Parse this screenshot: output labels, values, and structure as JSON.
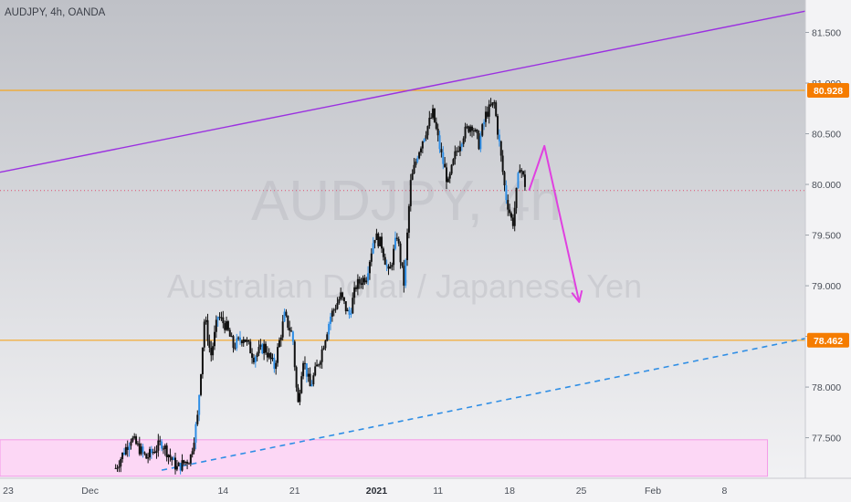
{
  "header": {
    "symbol_label": "AUDJPY, 4h, OANDA"
  },
  "watermark": {
    "ticker": "AUDJPY, 4h",
    "description": "Australian Dollar / Japanese Yen"
  },
  "colors": {
    "background_top": "#bfc1c7",
    "background_bottom": "#f4f4f6",
    "candle": "#111111",
    "candle_highlight": "#2f8ee5",
    "resistance": "#f5a623",
    "price_label_bg": "#f57c00",
    "trendline_upper": "#9b30e0",
    "trendline_lower": "#2f8ee5",
    "arrow": "#e040e0",
    "zone_fill": "#fcd7f5",
    "zone_border": "#f49ae8",
    "dotted_price": "#e0506e"
  },
  "chart_data": {
    "type": "candlestick",
    "title": "AUDJPY, 4h, OANDA",
    "ylim": [
      77.1,
      81.82
    ],
    "yticks": [
      77.5,
      78.0,
      78.5,
      79.0,
      79.5,
      80.0,
      80.5,
      81.0,
      81.5
    ],
    "ytick_labels": [
      "77.500",
      "78.000",
      "78.500",
      "79.000",
      "79.500",
      "80.000",
      "80.500",
      "81.000",
      "81.500"
    ],
    "xticks": [
      {
        "label": "23",
        "day": -1
      },
      {
        "label": "Dec",
        "day": 7
      },
      {
        "label": "14",
        "day": 20
      },
      {
        "label": "21",
        "day": 27
      },
      {
        "label": "2021",
        "day": 35
      },
      {
        "label": "11",
        "day": 41
      },
      {
        "label": "18",
        "day": 48
      },
      {
        "label": "25",
        "day": 55
      },
      {
        "label": "Feb",
        "day": 62
      },
      {
        "label": "8",
        "day": 69
      }
    ],
    "xdomain": [
      -1.8,
      76.9
    ],
    "price_path": [
      [
        9.5,
        77.2
      ],
      [
        11.0,
        77.5
      ],
      [
        12.5,
        77.3
      ],
      [
        14.0,
        77.45
      ],
      [
        15.5,
        77.2
      ],
      [
        16.8,
        77.3
      ],
      [
        17.5,
        77.7
      ],
      [
        18.2,
        78.7
      ],
      [
        18.8,
        78.3
      ],
      [
        19.5,
        78.7
      ],
      [
        20.3,
        78.6
      ],
      [
        21.0,
        78.4
      ],
      [
        22.0,
        78.5
      ],
      [
        23.0,
        78.3
      ],
      [
        24.0,
        78.4
      ],
      [
        25.0,
        78.2
      ],
      [
        26.0,
        78.7
      ],
      [
        26.8,
        78.5
      ],
      [
        27.3,
        77.8
      ],
      [
        27.8,
        78.3
      ],
      [
        28.5,
        78.0
      ],
      [
        29.5,
        78.3
      ],
      [
        30.5,
        78.7
      ],
      [
        31.5,
        78.9
      ],
      [
        32.3,
        78.7
      ],
      [
        33.0,
        79.0
      ],
      [
        34.0,
        79.1
      ],
      [
        34.8,
        79.5
      ],
      [
        35.5,
        79.4
      ],
      [
        36.2,
        79.1
      ],
      [
        37.0,
        79.5
      ],
      [
        37.7,
        79.0
      ],
      [
        38.3,
        80.0
      ],
      [
        39.0,
        80.3
      ],
      [
        39.7,
        80.5
      ],
      [
        40.5,
        80.7
      ],
      [
        41.3,
        80.3
      ],
      [
        42.0,
        80.0
      ],
      [
        42.7,
        80.3
      ],
      [
        43.5,
        80.5
      ],
      [
        44.3,
        80.6
      ],
      [
        45.0,
        80.4
      ],
      [
        45.7,
        80.7
      ],
      [
        46.5,
        80.8
      ],
      [
        47.0,
        80.4
      ],
      [
        47.6,
        79.9
      ],
      [
        48.3,
        79.6
      ],
      [
        49.0,
        80.2
      ],
      [
        49.5,
        80.0
      ]
    ],
    "last_price": 79.94,
    "horizontal_levels": [
      {
        "label": "80.928",
        "price": 80.928
      },
      {
        "label": "78.462",
        "price": 78.462
      }
    ],
    "upper_trendline": {
      "start": {
        "day": -1.8,
        "price": 80.12
      },
      "end": {
        "day": 76.9,
        "price": 81.71
      }
    },
    "lower_trendline": {
      "start": {
        "day": 14.0,
        "price": 77.18
      },
      "end": {
        "day": 76.9,
        "price": 78.48
      }
    },
    "support_zone": {
      "day_start": -1.8,
      "day_end": 73.2,
      "price_low": 77.12,
      "price_high": 77.48
    },
    "projection_arrow": [
      {
        "day": 49.9,
        "price": 79.94
      },
      {
        "day": 51.4,
        "price": 80.38
      },
      {
        "day": 54.8,
        "price": 78.84
      }
    ]
  }
}
